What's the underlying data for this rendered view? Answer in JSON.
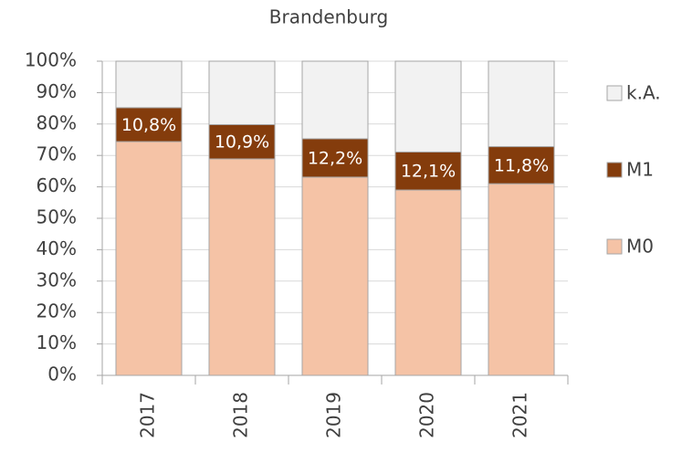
{
  "chart_data": {
    "type": "stacked_bar",
    "title": "Brandenburg",
    "categories": [
      "2017",
      "2018",
      "2019",
      "2020",
      "2021"
    ],
    "series": [
      {
        "name": "M0",
        "color": "#f5c3a6",
        "values": [
          74.4,
          68.9,
          63.1,
          59.0,
          61.0
        ]
      },
      {
        "name": "M1",
        "color": "#843c0c",
        "values": [
          10.8,
          10.9,
          12.2,
          12.1,
          11.8
        ],
        "value_labels": [
          "10,8%",
          "10,9%",
          "12,2%",
          "12,1%",
          "11,8%"
        ]
      },
      {
        "name": "k.A.",
        "color": "#f2f2f2",
        "values": [
          14.8,
          20.2,
          24.7,
          28.9,
          27.2
        ]
      }
    ],
    "ylim": [
      0,
      100
    ],
    "yticks": [
      {
        "value": 0,
        "label": "0%"
      },
      {
        "value": 10,
        "label": "10%"
      },
      {
        "value": 20,
        "label": "20%"
      },
      {
        "value": 30,
        "label": "30%"
      },
      {
        "value": 40,
        "label": "40%"
      },
      {
        "value": 50,
        "label": "50%"
      },
      {
        "value": 60,
        "label": "60%"
      },
      {
        "value": 70,
        "label": "70%"
      },
      {
        "value": 80,
        "label": "80%"
      },
      {
        "value": 90,
        "label": "90%"
      },
      {
        "value": 100,
        "label": "100%"
      }
    ],
    "grid": true,
    "legend": "right"
  }
}
